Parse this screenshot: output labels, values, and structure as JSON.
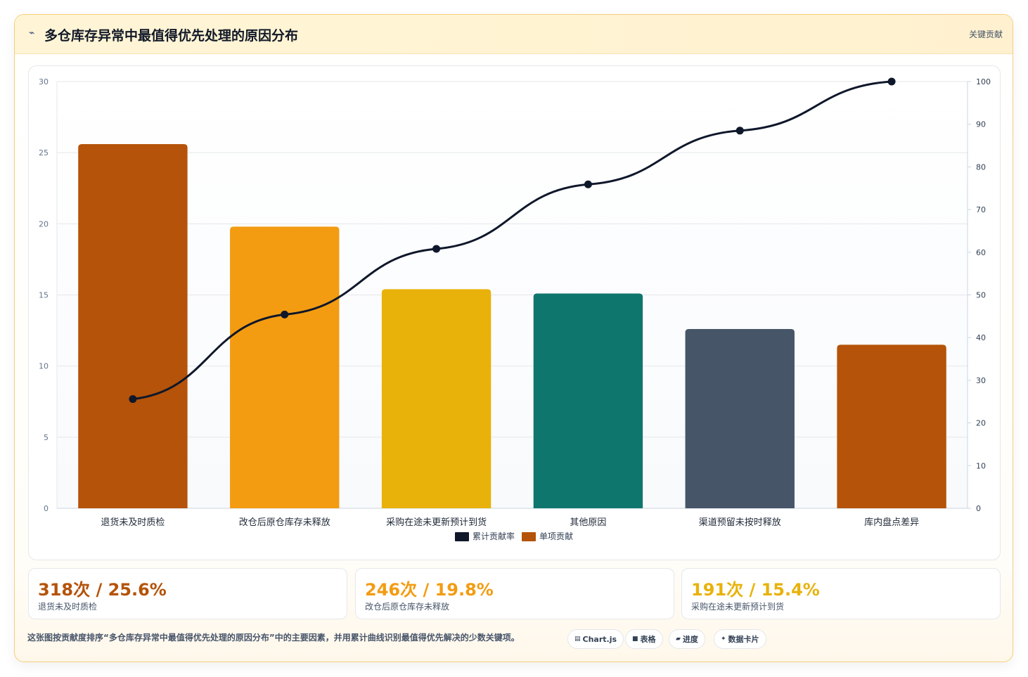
{
  "header": {
    "icon": "lightning-icon",
    "title": "多仓库存异常中最值得优先处理的原因分布",
    "badge": "关键贡献"
  },
  "chart_data": {
    "type": "bar",
    "categories": [
      "退货未及时质检",
      "改仓后原仓库存未释放",
      "采购在途未更新预计到货",
      "其他原因",
      "渠道预留未按时释放",
      "库内盘点差异"
    ],
    "series": [
      {
        "name": "单项贡献",
        "type": "bar",
        "axis": "left",
        "values": [
          25.6,
          19.8,
          15.4,
          15.1,
          12.6,
          11.5
        ]
      },
      {
        "name": "累计贡献率",
        "type": "line",
        "axis": "right",
        "values": [
          25.6,
          45.4,
          60.8,
          75.9,
          88.5,
          100
        ]
      }
    ],
    "bar_colors": [
      "#b45309",
      "#f39c12",
      "#e8b20a",
      "#0f766e",
      "#475569",
      "#b45309"
    ],
    "line_color": "#0f172a",
    "ylim_left": [
      0,
      30
    ],
    "yticks_left": [
      0,
      5,
      10,
      15,
      20,
      25,
      30
    ],
    "ylim_right": [
      0,
      100
    ],
    "yticks_right": [
      0,
      10,
      20,
      30,
      40,
      50,
      60,
      70,
      80,
      90,
      100
    ],
    "legend": [
      {
        "label": "累计贡献率",
        "color": "#0f172a"
      },
      {
        "label": "单项贡献",
        "color": "#b45309"
      }
    ],
    "legend_position": "bottom",
    "grid": true
  },
  "stats": [
    {
      "value": "318次 / 25.6%",
      "label": "退货未及时质检",
      "color": "#b45309"
    },
    {
      "value": "246次 / 19.8%",
      "label": "改仓后原仓库存未释放",
      "color": "#f39c12"
    },
    {
      "value": "191次 / 15.4%",
      "label": "采购在途未更新预计到货",
      "color": "#e8b20a"
    }
  ],
  "footer": {
    "note": "这张图按贡献度排序“多仓库存异常中最值得优先处理的原因分布”中的主要因素，并用累计曲线识别最值得优先解决的少数关键项。",
    "tags": [
      {
        "label": "Chart.js",
        "icon": "chart-icon"
      },
      {
        "label": "表格",
        "icon": "table-icon"
      },
      {
        "label": "进度",
        "icon": "progress-icon"
      },
      {
        "label": "数据卡片",
        "icon": "card-icon"
      }
    ]
  }
}
